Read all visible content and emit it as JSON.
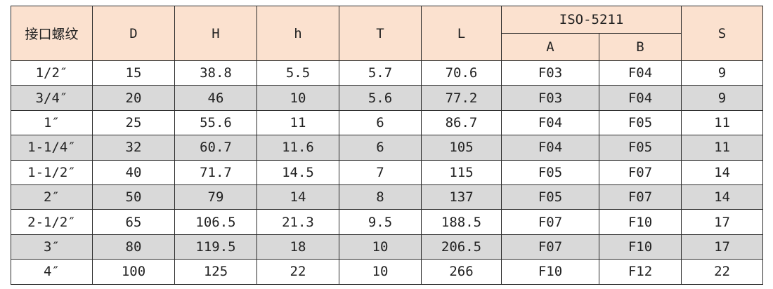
{
  "table": {
    "headers": {
      "thread": "接口螺纹",
      "D": "D",
      "H": "H",
      "h": "h",
      "T": "T",
      "L": "L",
      "iso": "ISO-5211",
      "A": "A",
      "B": "B",
      "S": "S"
    },
    "rows": [
      [
        "1/2″",
        "15",
        "38.8",
        "5.5",
        "5.7",
        "70.6",
        "F03",
        "F04",
        "9"
      ],
      [
        "3/4″",
        "20",
        "46",
        "10",
        "5.6",
        "77.2",
        "F03",
        "F04",
        "9"
      ],
      [
        "1″",
        "25",
        "55.6",
        "11",
        "6",
        "86.7",
        "F04",
        "F05",
        "11"
      ],
      [
        "1-1/4″",
        "32",
        "60.7",
        "11.6",
        "6",
        "105",
        "F04",
        "F05",
        "11"
      ],
      [
        "1-1/2″",
        "40",
        "71.7",
        "14.5",
        "7",
        "115",
        "F05",
        "F07",
        "14"
      ],
      [
        "2″",
        "50",
        "79",
        "14",
        "8",
        "137",
        "F05",
        "F07",
        "14"
      ],
      [
        "2-1/2″",
        "65",
        "106.5",
        "21.3",
        "9.5",
        "188.5",
        "F07",
        "F10",
        "17"
      ],
      [
        "3″",
        "80",
        "119.5",
        "18",
        "10",
        "206.5",
        "F07",
        "F10",
        "17"
      ],
      [
        "4″",
        "100",
        "125",
        "22",
        "10",
        "266",
        "F10",
        "F12",
        "22"
      ]
    ],
    "colors": {
      "header_bg": "#fbe1cf",
      "shaded_row_bg": "#d9d9d9",
      "border": "#2b2b2b"
    }
  }
}
